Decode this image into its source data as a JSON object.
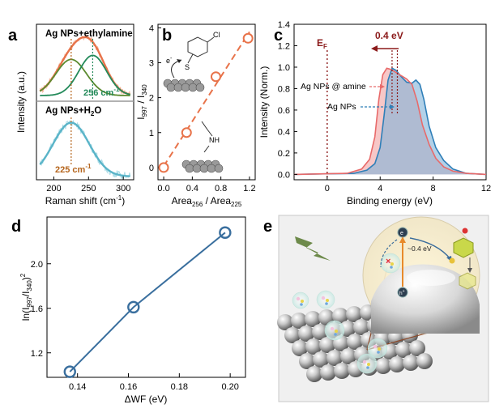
{
  "panels": {
    "a": "a",
    "b": "b",
    "c": "c",
    "d": "d",
    "e": "e"
  },
  "chart_data": [
    {
      "panel": "a",
      "type": "line",
      "ylabel": "Intensity (a.u.)",
      "xlabel": "Raman shift (cm",
      "xlabel_sup": "-1",
      "xlabel_end": ")",
      "xlim": [
        175,
        315
      ],
      "xticks": [
        "200",
        "250",
        "300"
      ],
      "top": {
        "label": "Ag NPs+ethylamine",
        "annotation": "256 cm",
        "annotation_sup": "-1",
        "peaks": [
          {
            "center": 225,
            "color": "#5b8a2f"
          },
          {
            "center": 256,
            "color": "#238a5a"
          }
        ],
        "envelope_color": "#e8734a",
        "raw_color": "#f2b89e"
      },
      "bottom": {
        "label": "Ag NPs+H",
        "label_sub": "2",
        "label_end": "O",
        "annotation": "225 cm",
        "annotation_sup": "-1",
        "peak_center": 225,
        "fit_color": "#5ab4c8",
        "raw_color": "#a8dbe6"
      }
    },
    {
      "panel": "b",
      "type": "scatter",
      "ylabel_parts": [
        "I",
        "997",
        " / I",
        "340"
      ],
      "xlabel_parts": [
        "Area",
        "256",
        " / Area",
        "225"
      ],
      "xlim": [
        -0.08,
        1.28
      ],
      "ylim": [
        -0.35,
        4.1
      ],
      "xticks": [
        0.0,
        0.4,
        0.8,
        1.2
      ],
      "xtick_labels": [
        "0.0",
        "0.4",
        "0.8",
        "1.2"
      ],
      "yticks": [
        0,
        1,
        2,
        3,
        4
      ],
      "ytick_labels": [
        "0",
        "1",
        "2",
        "3",
        "4"
      ],
      "x": [
        0.0,
        0.32,
        0.73,
        1.18
      ],
      "y": [
        0.0,
        1.0,
        2.6,
        3.7
      ],
      "color": "#e8734a",
      "inset_labels": {
        "cl": "Cl",
        "s": "S",
        "e": "e",
        "e_sup": "-",
        "nh": "NH"
      }
    },
    {
      "panel": "c",
      "type": "area",
      "ylabel": "Intensity (Norm.)",
      "xlabel": "Binding energy (eV)",
      "xlim": [
        -2.5,
        12
      ],
      "ylim": [
        -0.05,
        1.4
      ],
      "xticks": [
        0,
        4,
        8,
        12
      ],
      "xtick_labels": [
        "0",
        "4",
        "8",
        "12"
      ],
      "yticks": [
        0.0,
        0.2,
        0.4,
        0.6,
        0.8,
        1.0,
        1.2,
        1.4
      ],
      "ytick_labels": [
        "0.0",
        "0.2",
        "0.4",
        "0.6",
        "0.8",
        "1.0",
        "1.2",
        "1.4"
      ],
      "fermi_label": "E",
      "fermi_sub": "F",
      "shift_label": "0.4 eV",
      "series": [
        {
          "name": "Ag NPs",
          "color": "#2f7fb8",
          "fill": "#7fb3d8",
          "x": [
            -2.5,
            2.0,
            3.0,
            3.6,
            4.0,
            4.3,
            4.6,
            4.9,
            5.2,
            5.6,
            6.0,
            6.4,
            6.7,
            7.0,
            7.3,
            7.7,
            8.2,
            8.8,
            9.5,
            10.5,
            12.0
          ],
          "y": [
            0.0,
            0.01,
            0.04,
            0.1,
            0.25,
            0.55,
            0.88,
            0.99,
            0.97,
            0.91,
            0.86,
            0.85,
            0.88,
            0.84,
            0.7,
            0.45,
            0.25,
            0.13,
            0.05,
            0.01,
            0.0
          ]
        },
        {
          "name": "Ag NPs @ amine",
          "color": "#e86a6a",
          "fill": "#f2a2a2",
          "x": [
            -2.5,
            1.5,
            2.6,
            3.2,
            3.6,
            3.9,
            4.2,
            4.5,
            4.8,
            5.2,
            5.6,
            6.0,
            6.4,
            6.8,
            7.2,
            7.7,
            8.2,
            8.8,
            9.5,
            10.5,
            12.0
          ],
          "y": [
            0.0,
            0.01,
            0.05,
            0.14,
            0.35,
            0.7,
            0.93,
            0.99,
            0.98,
            0.95,
            0.92,
            0.89,
            0.84,
            0.68,
            0.46,
            0.28,
            0.15,
            0.07,
            0.03,
            0.01,
            0.0
          ]
        }
      ]
    },
    {
      "panel": "d",
      "type": "line",
      "ylabel_parts": [
        "ln(I",
        "997",
        "/I",
        "340",
        ")",
        "2"
      ],
      "xlabel": "ΔWF (eV)",
      "xlim": [
        0.128,
        0.206
      ],
      "ylim": [
        0.98,
        2.42
      ],
      "xticks": [
        0.14,
        0.16,
        0.18,
        0.2
      ],
      "xtick_labels": [
        "0.14",
        "0.16",
        "0.18",
        "0.20"
      ],
      "yticks": [
        1.2,
        1.6,
        2.0
      ],
      "ytick_labels": [
        "1.2",
        "1.6",
        "2.0"
      ],
      "x": [
        0.137,
        0.162,
        0.198
      ],
      "y": [
        1.03,
        1.61,
        2.28
      ],
      "color": "#3a6f9e"
    }
  ],
  "scheme_e": {
    "label_shift": "~0.4 eV",
    "label_cross": "×",
    "label_electron": "e",
    "label_hole": "h",
    "label_hole_sup": "+"
  }
}
